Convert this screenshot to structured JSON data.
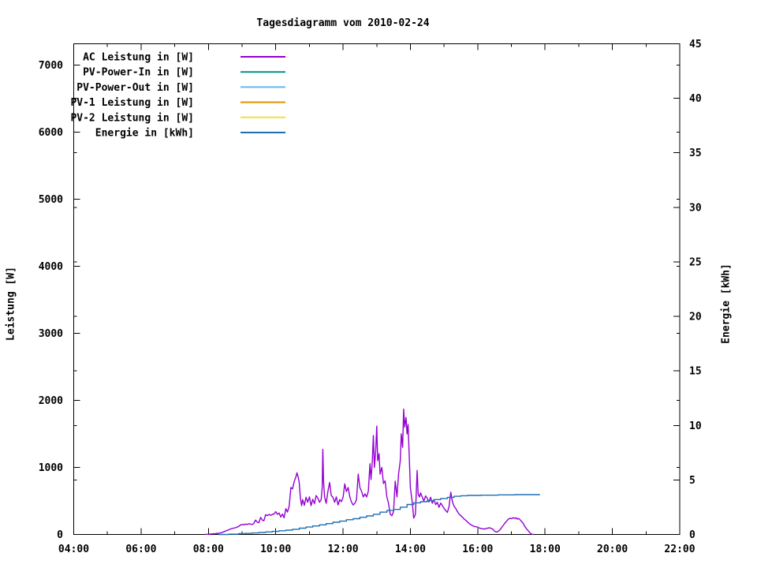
{
  "chart_data": {
    "type": "line",
    "title": "Tagesdiagramm vom 2010-02-24",
    "xlabel": "",
    "ylabel": "Leistung [W]",
    "y2label": "Energie [kWh]",
    "x_unit": "time (hours)",
    "x_range_hours": [
      4,
      22
    ],
    "x_major_tick_every_hours": 2,
    "x_minor_tick_every_hours": 1,
    "x_tick_hours": [
      4,
      6,
      8,
      10,
      12,
      14,
      16,
      18,
      20,
      22
    ],
    "x_tick_labels": [
      "04:00",
      "06:00",
      "08:00",
      "10:00",
      "12:00",
      "14:00",
      "16:00",
      "18:00",
      "20:00",
      "22:00"
    ],
    "y_range": [
      0,
      7318
    ],
    "y_ticks": [
      0,
      1000,
      2000,
      3000,
      4000,
      5000,
      6000,
      7000
    ],
    "y2_range": [
      0,
      45
    ],
    "y2_ticks": [
      0,
      5,
      10,
      15,
      20,
      25,
      30,
      35,
      40,
      45
    ],
    "grid": false,
    "legend_position": "top-left-inside",
    "background_color": "#ffffff",
    "border_color": "#000000",
    "series": [
      {
        "name": "AC Leistung in [W]",
        "color": "#9400d3",
        "axis": "y1",
        "style": "line",
        "points": [
          [
            7.9,
            0
          ],
          [
            8.0,
            3
          ],
          [
            8.1,
            8
          ],
          [
            8.2,
            12
          ],
          [
            8.3,
            18
          ],
          [
            8.4,
            28
          ],
          [
            8.5,
            50
          ],
          [
            8.6,
            70
          ],
          [
            8.7,
            90
          ],
          [
            8.8,
            100
          ],
          [
            8.9,
            120
          ],
          [
            8.95,
            140
          ],
          [
            9.0,
            150
          ],
          [
            9.05,
            145
          ],
          [
            9.1,
            155
          ],
          [
            9.15,
            150
          ],
          [
            9.2,
            160
          ],
          [
            9.3,
            150
          ],
          [
            9.35,
            165
          ],
          [
            9.4,
            215
          ],
          [
            9.45,
            185
          ],
          [
            9.5,
            175
          ],
          [
            9.55,
            255
          ],
          [
            9.6,
            215
          ],
          [
            9.65,
            205
          ],
          [
            9.7,
            295
          ],
          [
            9.75,
            280
          ],
          [
            9.8,
            300
          ],
          [
            9.85,
            285
          ],
          [
            9.9,
            300
          ],
          [
            9.95,
            305
          ],
          [
            10.0,
            340
          ],
          [
            10.05,
            300
          ],
          [
            10.1,
            320
          ],
          [
            10.15,
            260
          ],
          [
            10.2,
            305
          ],
          [
            10.25,
            250
          ],
          [
            10.3,
            385
          ],
          [
            10.35,
            335
          ],
          [
            10.4,
            420
          ],
          [
            10.45,
            700
          ],
          [
            10.5,
            680
          ],
          [
            10.55,
            790
          ],
          [
            10.6,
            860
          ],
          [
            10.63,
            920
          ],
          [
            10.67,
            850
          ],
          [
            10.7,
            760
          ],
          [
            10.73,
            560
          ],
          [
            10.77,
            430
          ],
          [
            10.8,
            520
          ],
          [
            10.85,
            435
          ],
          [
            10.9,
            555
          ],
          [
            10.95,
            480
          ],
          [
            11.0,
            560
          ],
          [
            11.05,
            430
          ],
          [
            11.1,
            525
          ],
          [
            11.15,
            460
          ],
          [
            11.2,
            580
          ],
          [
            11.25,
            545
          ],
          [
            11.3,
            480
          ],
          [
            11.35,
            520
          ],
          [
            11.38,
            700
          ],
          [
            11.4,
            1270
          ],
          [
            11.42,
            800
          ],
          [
            11.45,
            560
          ],
          [
            11.5,
            465
          ],
          [
            11.55,
            640
          ],
          [
            11.6,
            775
          ],
          [
            11.65,
            580
          ],
          [
            11.7,
            555
          ],
          [
            11.75,
            480
          ],
          [
            11.8,
            560
          ],
          [
            11.85,
            440
          ],
          [
            11.9,
            520
          ],
          [
            11.95,
            490
          ],
          [
            12.0,
            555
          ],
          [
            12.05,
            755
          ],
          [
            12.1,
            640
          ],
          [
            12.15,
            700
          ],
          [
            12.2,
            560
          ],
          [
            12.25,
            485
          ],
          [
            12.3,
            440
          ],
          [
            12.35,
            465
          ],
          [
            12.4,
            520
          ],
          [
            12.45,
            900
          ],
          [
            12.5,
            700
          ],
          [
            12.55,
            645
          ],
          [
            12.6,
            560
          ],
          [
            12.65,
            605
          ],
          [
            12.7,
            560
          ],
          [
            12.75,
            645
          ],
          [
            12.8,
            1055
          ],
          [
            12.83,
            820
          ],
          [
            12.87,
            1100
          ],
          [
            12.9,
            1475
          ],
          [
            12.93,
            1000
          ],
          [
            12.97,
            1250
          ],
          [
            13.0,
            1615
          ],
          [
            13.03,
            1100
          ],
          [
            13.07,
            1205
          ],
          [
            13.1,
            900
          ],
          [
            13.15,
            1000
          ],
          [
            13.2,
            760
          ],
          [
            13.25,
            800
          ],
          [
            13.3,
            560
          ],
          [
            13.35,
            465
          ],
          [
            13.4,
            305
          ],
          [
            13.45,
            280
          ],
          [
            13.5,
            345
          ],
          [
            13.55,
            795
          ],
          [
            13.6,
            560
          ],
          [
            13.65,
            905
          ],
          [
            13.7,
            1100
          ],
          [
            13.73,
            1500
          ],
          [
            13.77,
            1300
          ],
          [
            13.8,
            1870
          ],
          [
            13.83,
            1600
          ],
          [
            13.87,
            1745
          ],
          [
            13.9,
            1500
          ],
          [
            13.93,
            1640
          ],
          [
            13.97,
            1100
          ],
          [
            14.0,
            700
          ],
          [
            14.05,
            500
          ],
          [
            14.1,
            245
          ],
          [
            14.15,
            300
          ],
          [
            14.2,
            955
          ],
          [
            14.23,
            600
          ],
          [
            14.27,
            560
          ],
          [
            14.3,
            620
          ],
          [
            14.35,
            560
          ],
          [
            14.4,
            500
          ],
          [
            14.45,
            575
          ],
          [
            14.5,
            540
          ],
          [
            14.55,
            485
          ],
          [
            14.6,
            555
          ],
          [
            14.65,
            465
          ],
          [
            14.7,
            520
          ],
          [
            14.75,
            445
          ],
          [
            14.8,
            480
          ],
          [
            14.85,
            405
          ],
          [
            14.9,
            470
          ],
          [
            14.95,
            430
          ],
          [
            15.0,
            390
          ],
          [
            15.05,
            355
          ],
          [
            15.1,
            330
          ],
          [
            15.15,
            420
          ],
          [
            15.2,
            630
          ],
          [
            15.25,
            485
          ],
          [
            15.3,
            420
          ],
          [
            15.35,
            385
          ],
          [
            15.4,
            340
          ],
          [
            15.45,
            300
          ],
          [
            15.5,
            280
          ],
          [
            15.55,
            255
          ],
          [
            15.6,
            230
          ],
          [
            15.65,
            210
          ],
          [
            15.7,
            185
          ],
          [
            15.75,
            160
          ],
          [
            15.8,
            145
          ],
          [
            15.85,
            130
          ],
          [
            15.9,
            120
          ],
          [
            15.95,
            115
          ],
          [
            16.0,
            110
          ],
          [
            16.05,
            95
          ],
          [
            16.1,
            90
          ],
          [
            16.15,
            85
          ],
          [
            16.2,
            80
          ],
          [
            16.25,
            90
          ],
          [
            16.3,
            95
          ],
          [
            16.35,
            100
          ],
          [
            16.4,
            90
          ],
          [
            16.45,
            80
          ],
          [
            16.5,
            50
          ],
          [
            16.55,
            35
          ],
          [
            16.6,
            45
          ],
          [
            16.65,
            65
          ],
          [
            16.7,
            95
          ],
          [
            16.8,
            165
          ],
          [
            16.9,
            225
          ],
          [
            16.95,
            240
          ],
          [
            17.0,
            235
          ],
          [
            17.05,
            250
          ],
          [
            17.1,
            240
          ],
          [
            17.13,
            250
          ],
          [
            17.17,
            230
          ],
          [
            17.2,
            240
          ],
          [
            17.25,
            225
          ],
          [
            17.3,
            195
          ],
          [
            17.35,
            165
          ],
          [
            17.4,
            120
          ],
          [
            17.45,
            85
          ],
          [
            17.5,
            55
          ],
          [
            17.55,
            25
          ],
          [
            17.6,
            5
          ],
          [
            17.65,
            0
          ]
        ]
      },
      {
        "name": "PV-Power-In in [W]",
        "color": "#00918e",
        "axis": "y1",
        "style": "line",
        "points": []
      },
      {
        "name": "PV-Power-Out in [W]",
        "color": "#68b7e9",
        "axis": "y1",
        "style": "line",
        "points": []
      },
      {
        "name": "PV-1 Leistung in [W]",
        "color": "#df9300",
        "axis": "y1",
        "style": "line",
        "points": []
      },
      {
        "name": "PV-2 Leistung in [W]",
        "color": "#eee23c",
        "axis": "y1",
        "style": "line",
        "points": []
      },
      {
        "name": "Energie in [kWh]",
        "color": "#1e6fb2",
        "axis": "y2",
        "style": "steps",
        "points": [
          [
            8.3,
            0.0
          ],
          [
            8.6,
            0.03
          ],
          [
            8.9,
            0.07
          ],
          [
            9.1,
            0.1
          ],
          [
            9.3,
            0.14
          ],
          [
            9.5,
            0.18
          ],
          [
            9.7,
            0.23
          ],
          [
            9.9,
            0.28
          ],
          [
            10.1,
            0.34
          ],
          [
            10.3,
            0.4
          ],
          [
            10.5,
            0.48
          ],
          [
            10.7,
            0.58
          ],
          [
            10.9,
            0.68
          ],
          [
            11.1,
            0.78
          ],
          [
            11.3,
            0.88
          ],
          [
            11.5,
            1.0
          ],
          [
            11.7,
            1.12
          ],
          [
            11.9,
            1.22
          ],
          [
            12.1,
            1.35
          ],
          [
            12.3,
            1.45
          ],
          [
            12.5,
            1.58
          ],
          [
            12.7,
            1.7
          ],
          [
            12.9,
            1.85
          ],
          [
            13.1,
            2.05
          ],
          [
            13.3,
            2.2
          ],
          [
            13.5,
            2.3
          ],
          [
            13.7,
            2.5
          ],
          [
            13.9,
            2.75
          ],
          [
            14.1,
            2.9
          ],
          [
            14.3,
            3.0
          ],
          [
            14.5,
            3.1
          ],
          [
            14.7,
            3.2
          ],
          [
            14.9,
            3.3
          ],
          [
            15.1,
            3.4
          ],
          [
            15.3,
            3.5
          ],
          [
            15.5,
            3.55
          ],
          [
            15.7,
            3.58
          ],
          [
            16.1,
            3.6
          ],
          [
            16.6,
            3.63
          ],
          [
            17.1,
            3.65
          ],
          [
            17.85,
            3.65
          ]
        ]
      }
    ]
  }
}
